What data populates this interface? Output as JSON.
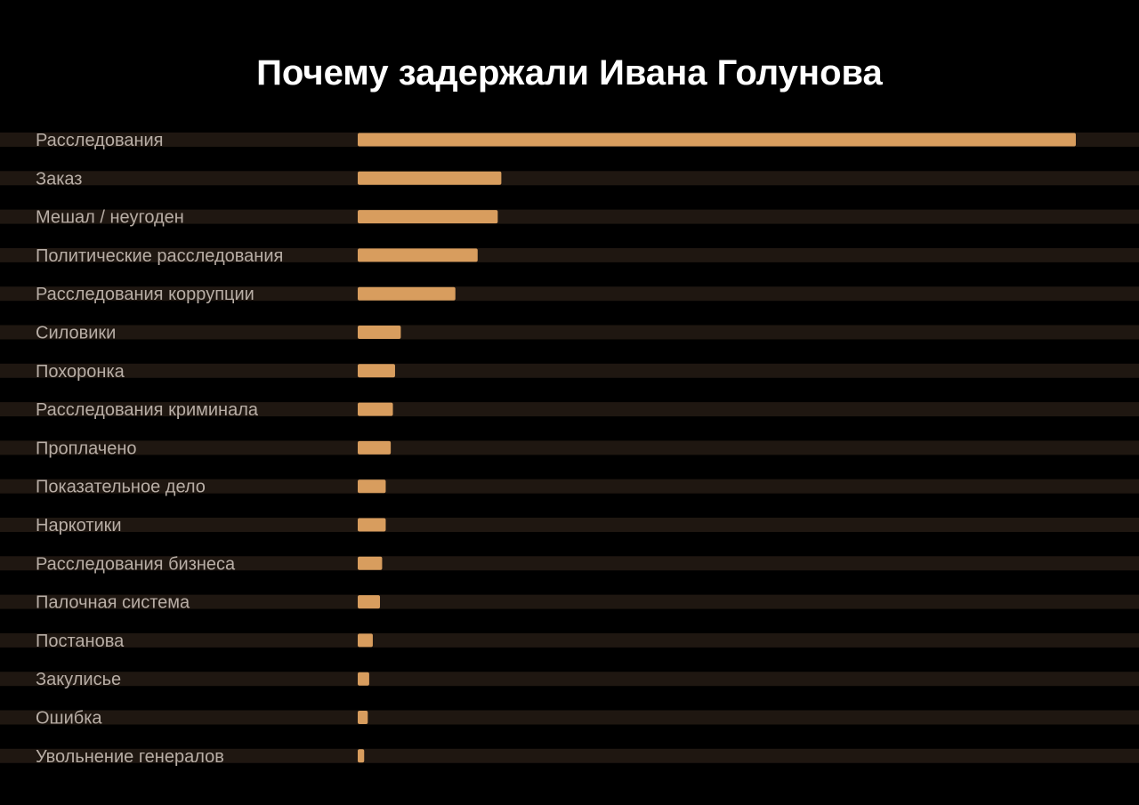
{
  "chart_data": {
    "type": "bar",
    "orientation": "horizontal",
    "title": "Почему задержали Ивана Голунова",
    "categories": [
      "Расследования",
      "Заказ",
      "Мешал / неугоден",
      "Политические расследования",
      "Расследования коррупции",
      "Силовики",
      "Похоронка",
      "Расследования криминала",
      "Проплачено",
      "Показательное дело",
      "Наркотики",
      "Расследования бизнеса",
      "Палочная система",
      "Постанова",
      "Закулисье",
      "Ошибка",
      "Увольнение генералов"
    ],
    "values": [
      100,
      20,
      19.5,
      16.7,
      13.6,
      6,
      5.2,
      4.9,
      4.6,
      3.9,
      3.9,
      3.4,
      3.1,
      2.1,
      1.6,
      1.4,
      0.9
    ],
    "xlim": [
      0,
      100
    ],
    "grid": false,
    "legend": "none",
    "colors": {
      "background": "#000000",
      "bar": "#d89d5e",
      "track": "#1f1711",
      "label": "#b8aea6",
      "title": "#ffffff"
    }
  }
}
